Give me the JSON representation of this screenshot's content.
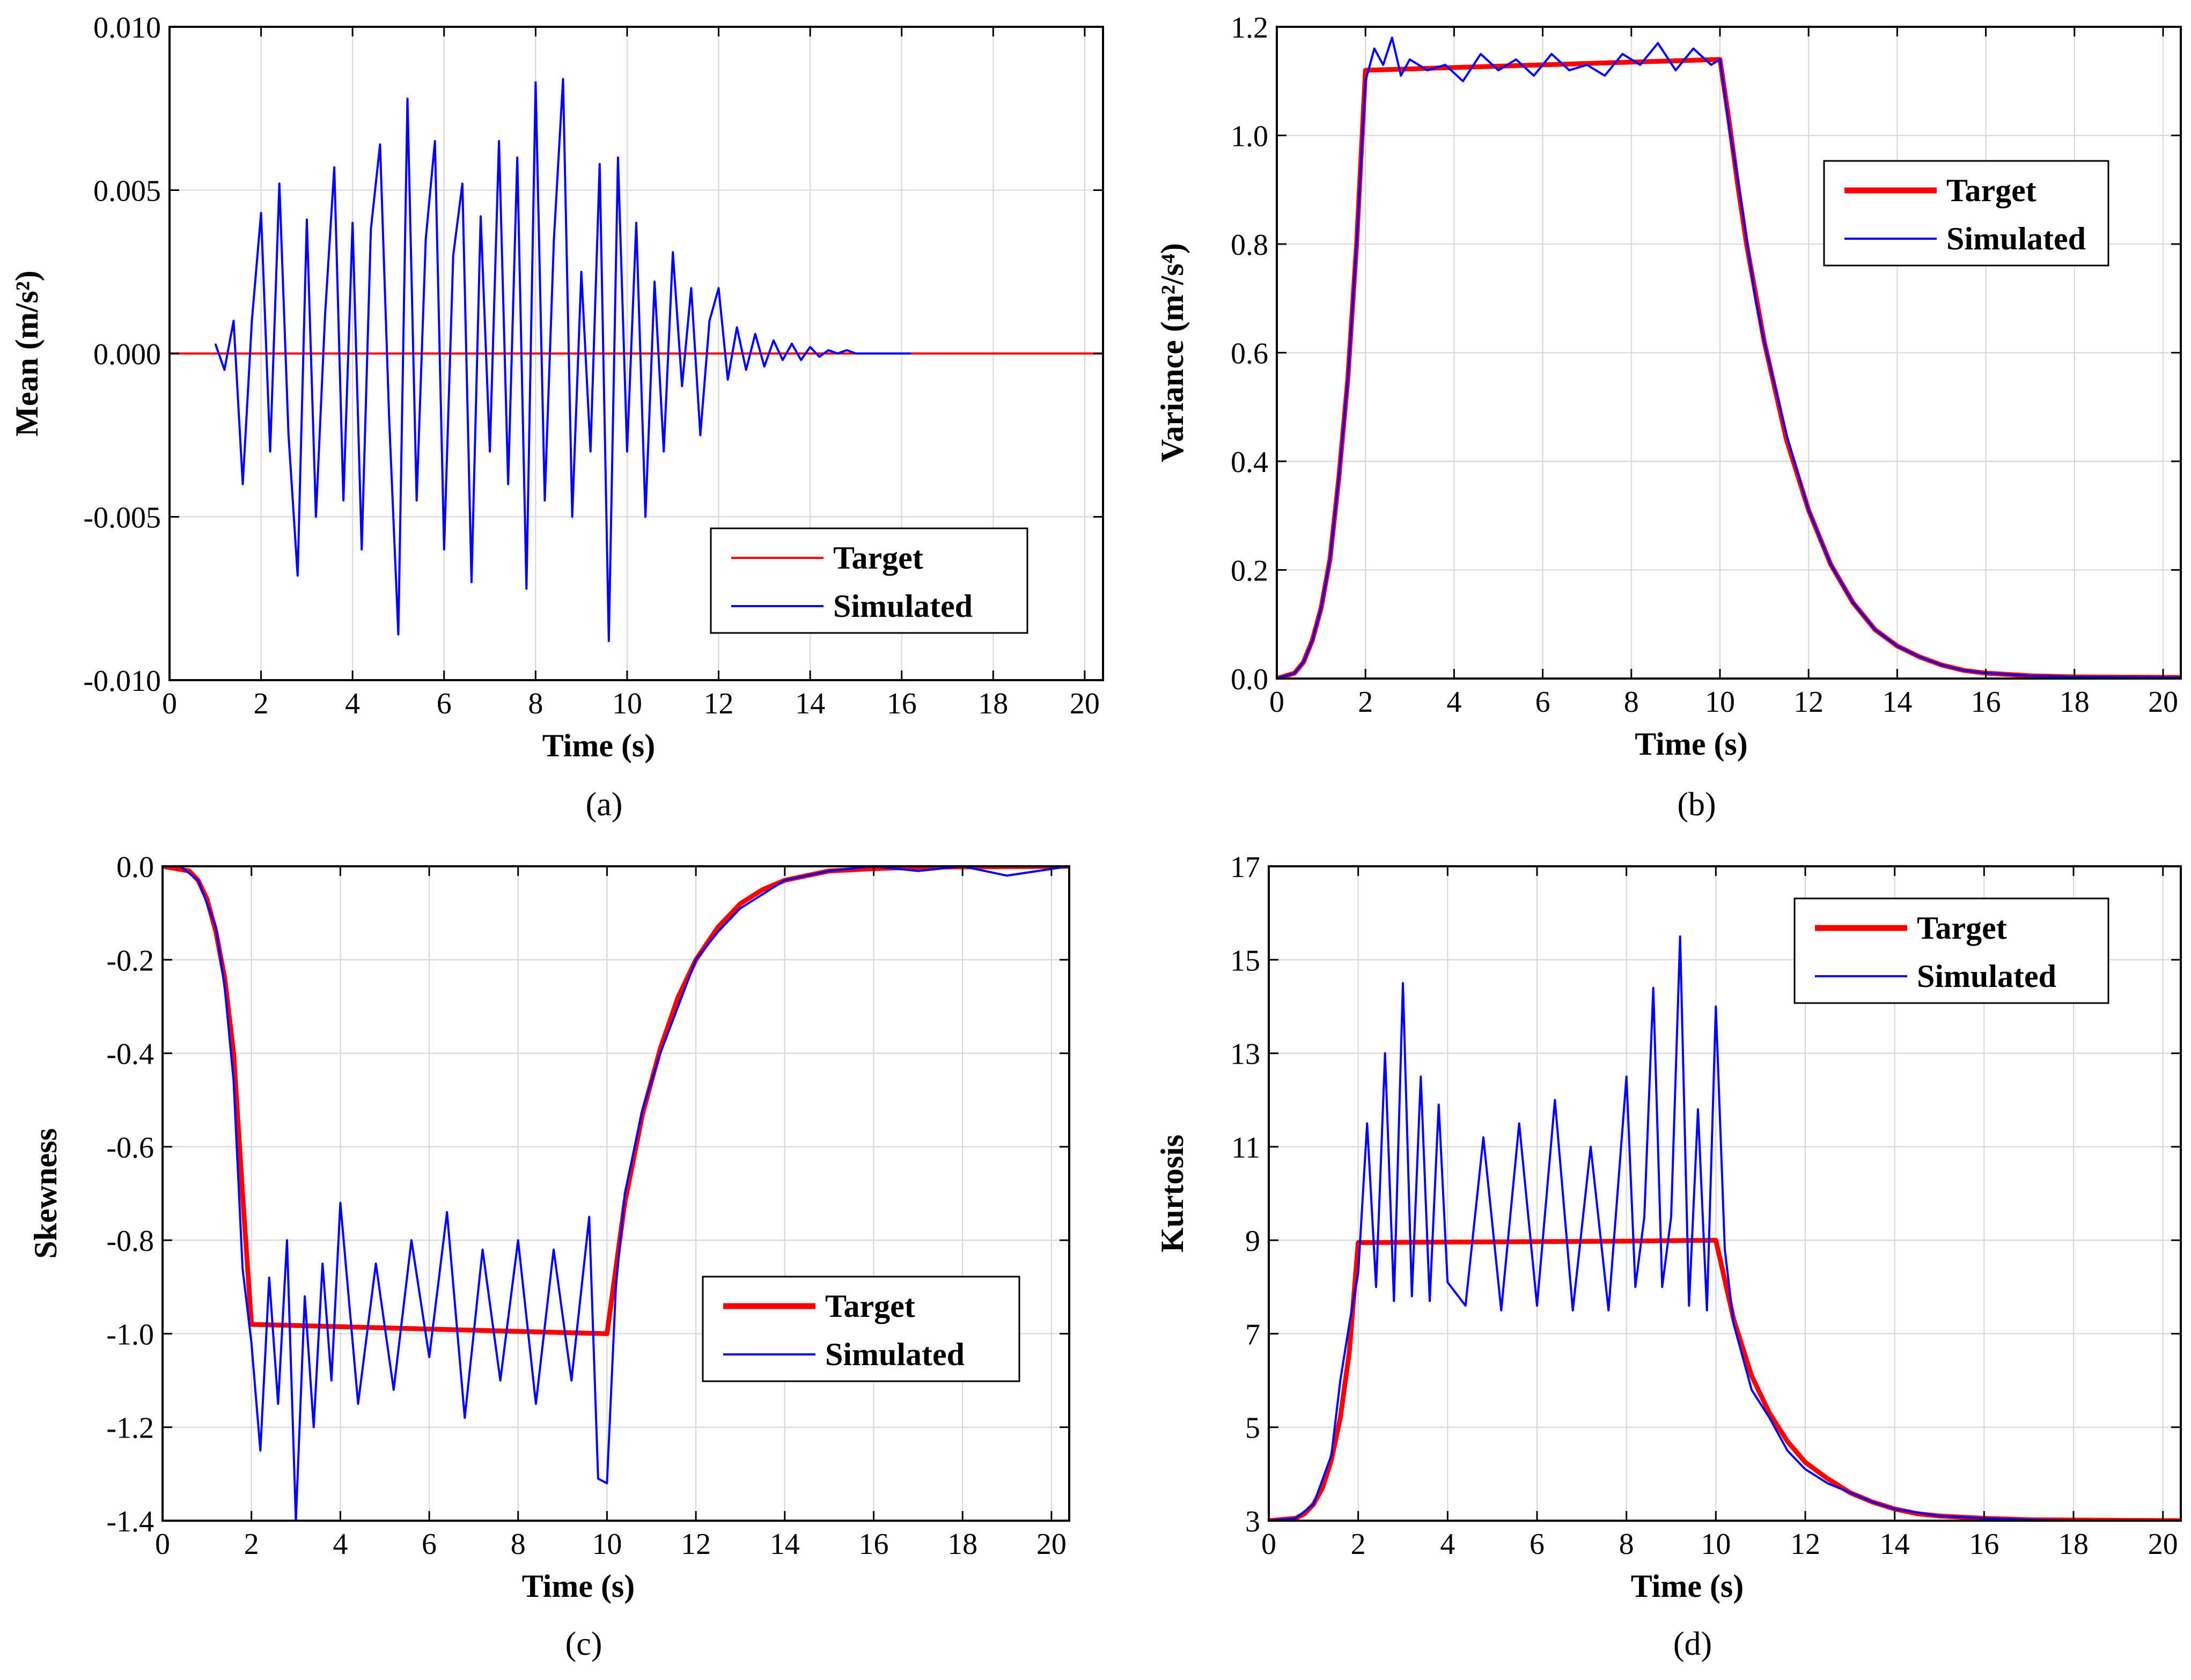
{
  "figure": {
    "title": "",
    "panel_count": 4
  },
  "chart_data": [
    {
      "id": "a",
      "type": "line",
      "caption": "(a)",
      "xlabel": "Time (s)",
      "ylabel": "Mean (m/s²)",
      "title": "",
      "xlim": [
        0,
        20.4
      ],
      "ylim": [
        -0.01,
        0.01
      ],
      "xticks": [
        0,
        2,
        4,
        6,
        8,
        10,
        12,
        14,
        16,
        18,
        20
      ],
      "xtick_labels": [
        "0",
        "2",
        "4",
        "6",
        "8",
        "10",
        "12",
        "14",
        "16",
        "18",
        "20"
      ],
      "yticks": [
        -0.01,
        -0.005,
        0.0,
        0.005,
        0.01
      ],
      "ytick_labels": [
        "-0.010",
        "-0.005",
        "0.000",
        "0.005",
        "0.010"
      ],
      "grid": true,
      "legend_position": "lower-right",
      "series": [
        {
          "name": "Target",
          "color": "#ff0000",
          "style": "thin",
          "x": [
            0,
            20.4
          ],
          "y": [
            0,
            0
          ]
        },
        {
          "name": "Simulated",
          "color": "#0000ff",
          "style": "thin",
          "x": [
            1.0,
            1.2,
            1.4,
            1.6,
            1.8,
            2.0,
            2.2,
            2.4,
            2.6,
            2.8,
            3.0,
            3.2,
            3.4,
            3.6,
            3.8,
            4.0,
            4.2,
            4.4,
            4.6,
            4.8,
            5.0,
            5.2,
            5.4,
            5.6,
            5.8,
            6.0,
            6.2,
            6.4,
            6.6,
            6.8,
            7.0,
            7.2,
            7.4,
            7.6,
            7.8,
            8.0,
            8.2,
            8.4,
            8.6,
            8.8,
            9.0,
            9.2,
            9.4,
            9.6,
            9.8,
            10.0,
            10.2,
            10.4,
            10.6,
            10.8,
            11.0,
            11.2,
            11.4,
            11.6,
            11.8,
            12.0,
            12.2,
            12.4,
            12.6,
            12.8,
            13.0,
            13.2,
            13.4,
            13.6,
            13.8,
            14.0,
            14.2,
            14.4,
            14.6,
            14.8,
            15.0,
            15.4,
            15.8,
            16.2
          ],
          "y": [
            0.0003,
            -0.0005,
            0.001,
            -0.004,
            0.001,
            0.0043,
            -0.003,
            0.0052,
            -0.0025,
            -0.0068,
            0.0041,
            -0.005,
            0.0012,
            0.0057,
            -0.0045,
            0.004,
            -0.006,
            0.0038,
            0.0064,
            -0.002,
            -0.0086,
            0.0078,
            -0.0045,
            0.0035,
            0.0065,
            -0.006,
            0.003,
            0.0052,
            -0.007,
            0.0042,
            -0.003,
            0.0065,
            -0.004,
            0.006,
            -0.0072,
            0.0083,
            -0.0045,
            0.0035,
            0.0084,
            -0.005,
            0.0025,
            -0.003,
            0.0058,
            -0.0088,
            0.006,
            -0.003,
            0.004,
            -0.005,
            0.0022,
            -0.003,
            0.0031,
            -0.001,
            0.002,
            -0.0025,
            0.001,
            0.002,
            -0.0008,
            0.0008,
            -0.0005,
            0.0006,
            -0.0004,
            0.0004,
            -0.0002,
            0.0003,
            -0.0002,
            0.0002,
            -0.0001,
            0.0001,
            0.0,
            0.0001,
            0.0,
            0.0,
            0.0,
            0.0
          ]
        }
      ]
    },
    {
      "id": "b",
      "type": "line",
      "caption": "(b)",
      "xlabel": "Time (s)",
      "ylabel": "Variance (m²/s⁴)",
      "title": "",
      "xlim": [
        0,
        20.4
      ],
      "ylim": [
        0.0,
        1.2
      ],
      "xticks": [
        0,
        2,
        4,
        6,
        8,
        10,
        12,
        14,
        16,
        18,
        20
      ],
      "xtick_labels": [
        "0",
        "2",
        "4",
        "6",
        "8",
        "10",
        "12",
        "14",
        "16",
        "18",
        "20"
      ],
      "yticks": [
        0.0,
        0.2,
        0.4,
        0.6,
        0.8,
        1.0,
        1.2
      ],
      "ytick_labels": [
        "0.0",
        "0.2",
        "0.4",
        "0.6",
        "0.8",
        "1.0",
        "1.2"
      ],
      "grid": true,
      "legend_position": "upper-right",
      "series": [
        {
          "name": "Target",
          "color": "#ff0000",
          "style": "thick",
          "x": [
            0,
            0.4,
            0.6,
            0.8,
            1.0,
            1.2,
            1.4,
            1.6,
            1.8,
            2.0,
            4.0,
            6.0,
            8.0,
            10.0,
            10.2,
            10.4,
            10.6,
            10.8,
            11.0,
            11.5,
            12.0,
            12.5,
            13.0,
            13.5,
            14.0,
            14.5,
            15.0,
            15.5,
            16.0,
            17.0,
            18.0,
            20.4
          ],
          "y": [
            0,
            0.01,
            0.03,
            0.07,
            0.13,
            0.22,
            0.37,
            0.55,
            0.8,
            1.12,
            1.125,
            1.13,
            1.135,
            1.14,
            1.03,
            0.91,
            0.8,
            0.71,
            0.62,
            0.44,
            0.31,
            0.21,
            0.14,
            0.09,
            0.06,
            0.04,
            0.025,
            0.015,
            0.01,
            0.005,
            0.003,
            0.002
          ]
        },
        {
          "name": "Simulated",
          "color": "#0000ff",
          "style": "thin",
          "x": [
            0,
            0.4,
            0.6,
            0.8,
            1.0,
            1.2,
            1.4,
            1.6,
            1.8,
            2.0,
            2.2,
            2.4,
            2.6,
            2.8,
            3.0,
            3.4,
            3.8,
            4.2,
            4.6,
            5.0,
            5.4,
            5.8,
            6.2,
            6.6,
            7.0,
            7.4,
            7.8,
            8.2,
            8.6,
            9.0,
            9.4,
            9.8,
            10.0,
            10.2,
            10.4,
            10.6,
            10.8,
            11.0,
            11.5,
            12.0,
            12.5,
            13.0,
            13.5,
            14.0,
            14.5,
            15.0,
            15.5,
            16.0,
            17.0,
            18.0,
            20.4
          ],
          "y": [
            0,
            0.01,
            0.03,
            0.07,
            0.13,
            0.22,
            0.37,
            0.55,
            0.8,
            1.1,
            1.16,
            1.13,
            1.18,
            1.11,
            1.14,
            1.12,
            1.13,
            1.1,
            1.15,
            1.12,
            1.14,
            1.11,
            1.15,
            1.12,
            1.13,
            1.11,
            1.15,
            1.13,
            1.17,
            1.12,
            1.16,
            1.13,
            1.14,
            1.02,
            0.92,
            0.81,
            0.7,
            0.62,
            0.45,
            0.31,
            0.21,
            0.14,
            0.09,
            0.06,
            0.04,
            0.025,
            0.015,
            0.01,
            0.005,
            0.003,
            0.002
          ]
        }
      ]
    },
    {
      "id": "c",
      "type": "line",
      "caption": "(c)",
      "xlabel": "Time (s)",
      "ylabel": "Skewness",
      "title": "",
      "xlim": [
        0,
        20.4
      ],
      "ylim": [
        -1.4,
        0.0
      ],
      "xticks": [
        0,
        2,
        4,
        6,
        8,
        10,
        12,
        14,
        16,
        18,
        20
      ],
      "xtick_labels": [
        "0",
        "2",
        "4",
        "6",
        "8",
        "10",
        "12",
        "14",
        "16",
        "18",
        "20"
      ],
      "yticks": [
        -1.4,
        -1.2,
        -1.0,
        -0.8,
        -0.6,
        -0.4,
        -0.2,
        0.0
      ],
      "ytick_labels": [
        "-1.4",
        "-1.2",
        "-1.0",
        "-0.8",
        "-0.6",
        "-0.4",
        "-0.2",
        "0.0"
      ],
      "grid": true,
      "legend_position": "lower-right",
      "series": [
        {
          "name": "Target",
          "color": "#ff0000",
          "style": "thick",
          "x": [
            0,
            0.6,
            0.8,
            1.0,
            1.2,
            1.4,
            1.6,
            1.8,
            2.0,
            4.0,
            6.0,
            8.0,
            10.0,
            10.4,
            10.8,
            11.2,
            11.6,
            12.0,
            12.5,
            13.0,
            13.5,
            14.0,
            14.5,
            15.0,
            16.0,
            17.0,
            20.4
          ],
          "y": [
            0,
            -0.01,
            -0.03,
            -0.07,
            -0.14,
            -0.24,
            -0.4,
            -0.7,
            -0.98,
            -0.985,
            -0.99,
            -0.995,
            -1.0,
            -0.72,
            -0.53,
            -0.39,
            -0.28,
            -0.2,
            -0.13,
            -0.08,
            -0.05,
            -0.03,
            -0.02,
            -0.01,
            -0.005,
            -0.002,
            0.0
          ]
        },
        {
          "name": "Simulated",
          "color": "#0000ff",
          "style": "thin",
          "x": [
            0,
            0.4,
            0.8,
            1.0,
            1.2,
            1.4,
            1.6,
            1.8,
            2.0,
            2.2,
            2.4,
            2.6,
            2.8,
            3.0,
            3.2,
            3.4,
            3.6,
            3.8,
            4.0,
            4.4,
            4.8,
            5.2,
            5.6,
            6.0,
            6.4,
            6.8,
            7.2,
            7.6,
            8.0,
            8.4,
            8.8,
            9.2,
            9.6,
            9.8,
            10.0,
            10.2,
            10.4,
            10.8,
            11.2,
            11.6,
            12.0,
            12.5,
            13.0,
            13.5,
            14.0,
            14.5,
            15.0,
            16.0,
            17.0,
            18.0,
            19.0,
            20.4
          ],
          "y": [
            0,
            0.0,
            -0.03,
            -0.08,
            -0.13,
            -0.26,
            -0.46,
            -0.86,
            -1.02,
            -1.25,
            -0.88,
            -1.15,
            -0.8,
            -1.4,
            -0.92,
            -1.2,
            -0.85,
            -1.1,
            -0.72,
            -1.15,
            -0.85,
            -1.12,
            -0.8,
            -1.05,
            -0.74,
            -1.18,
            -0.82,
            -1.1,
            -0.8,
            -1.15,
            -0.82,
            -1.1,
            -0.75,
            -1.31,
            -1.32,
            -0.9,
            -0.7,
            -0.52,
            -0.4,
            -0.3,
            -0.2,
            -0.14,
            -0.09,
            -0.06,
            -0.03,
            -0.02,
            -0.01,
            0.0,
            -0.01,
            0.0,
            -0.02,
            0.0
          ]
        }
      ]
    },
    {
      "id": "d",
      "type": "line",
      "caption": "(d)",
      "xlabel": "Time (s)",
      "ylabel": "Kurtosis",
      "title": "",
      "xlim": [
        0,
        20.4
      ],
      "ylim": [
        3,
        17
      ],
      "xticks": [
        0,
        2,
        4,
        6,
        8,
        10,
        12,
        14,
        16,
        18,
        20
      ],
      "xtick_labels": [
        "0",
        "2",
        "4",
        "6",
        "8",
        "10",
        "12",
        "14",
        "16",
        "18",
        "20"
      ],
      "yticks": [
        3,
        5,
        7,
        9,
        11,
        13,
        15,
        17
      ],
      "ytick_labels": [
        "3",
        "5",
        "7",
        "9",
        "11",
        "13",
        "15",
        "17"
      ],
      "grid": true,
      "legend_position": "upper-right",
      "series": [
        {
          "name": "Target",
          "color": "#ff0000",
          "style": "thick",
          "x": [
            0,
            0.6,
            0.8,
            1.0,
            1.2,
            1.4,
            1.6,
            1.8,
            2.0,
            4.0,
            6.0,
            8.0,
            10.0,
            10.4,
            10.8,
            11.2,
            11.6,
            12.0,
            12.5,
            13.0,
            13.5,
            14.0,
            14.5,
            15.0,
            16.0,
            17.0,
            20.4
          ],
          "y": [
            3.0,
            3.05,
            3.15,
            3.35,
            3.7,
            4.3,
            5.2,
            6.6,
            8.95,
            8.96,
            8.97,
            8.98,
            9.0,
            7.3,
            6.1,
            5.3,
            4.7,
            4.25,
            3.9,
            3.6,
            3.4,
            3.25,
            3.15,
            3.1,
            3.05,
            3.02,
            3.0
          ]
        },
        {
          "name": "Simulated",
          "color": "#0000ff",
          "style": "thin",
          "x": [
            0,
            0.6,
            1.0,
            1.4,
            1.6,
            1.8,
            2.0,
            2.2,
            2.4,
            2.6,
            2.8,
            3.0,
            3.2,
            3.4,
            3.6,
            3.8,
            4.0,
            4.4,
            4.8,
            5.2,
            5.6,
            6.0,
            6.4,
            6.8,
            7.2,
            7.6,
            8.0,
            8.2,
            8.4,
            8.6,
            8.8,
            9.0,
            9.2,
            9.4,
            9.6,
            9.8,
            10.0,
            10.2,
            10.4,
            10.8,
            11.2,
            11.6,
            12.0,
            12.5,
            13.0,
            13.5,
            14.0,
            15.0,
            16.0,
            17.0,
            18.0,
            20.4
          ],
          "y": [
            3.0,
            3.05,
            3.35,
            4.4,
            6.0,
            7.2,
            8.3,
            11.5,
            8.0,
            13.0,
            7.7,
            14.5,
            7.8,
            12.5,
            7.7,
            11.9,
            8.1,
            7.6,
            11.2,
            7.5,
            11.5,
            7.6,
            12.0,
            7.5,
            11.0,
            7.5,
            12.5,
            8.0,
            9.5,
            14.4,
            8.0,
            9.5,
            15.5,
            7.6,
            11.8,
            7.5,
            14.0,
            8.8,
            7.2,
            5.8,
            5.2,
            4.5,
            4.1,
            3.8,
            3.6,
            3.4,
            3.25,
            3.1,
            3.05,
            3.02,
            3.0,
            3.0
          ]
        }
      ]
    }
  ]
}
